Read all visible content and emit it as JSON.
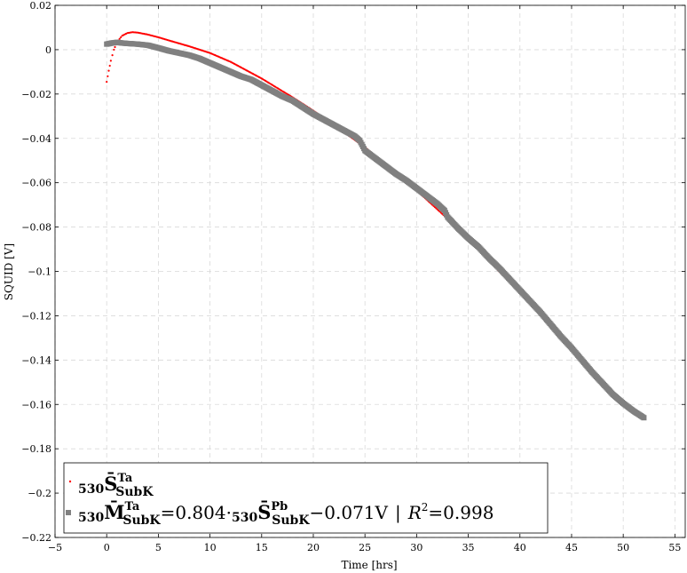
{
  "chart_data": {
    "type": "scatter",
    "title": "",
    "xlabel": "Time [hrs]",
    "ylabel": "SQUID [V]",
    "xlim": [
      -5,
      56
    ],
    "ylim": [
      -0.22,
      0.02
    ],
    "xticks": [
      "−5",
      "0",
      "5",
      "10",
      "15",
      "20",
      "25",
      "30",
      "35",
      "40",
      "45",
      "50",
      "55"
    ],
    "xtick_values": [
      -5,
      0,
      5,
      10,
      15,
      20,
      25,
      30,
      35,
      40,
      45,
      50,
      55
    ],
    "yticks": [
      "0.02",
      "0",
      "−0.02",
      "−0.04",
      "−0.06",
      "−0.08",
      "−0.1",
      "−0.12",
      "−0.14",
      "−0.16",
      "−0.18",
      "−0.2",
      "−0.22"
    ],
    "ytick_values": [
      0.02,
      0,
      -0.02,
      -0.04,
      -0.06,
      -0.08,
      -0.1,
      -0.12,
      -0.14,
      -0.16,
      -0.18,
      -0.2,
      -0.22
    ],
    "grid": true,
    "legend_position": "bottom-left",
    "series": [
      {
        "name": "530 S̄ Ta SubK",
        "color": "#ff0000",
        "marker": "small-dot",
        "x": [
          0.0,
          0.2,
          0.4,
          0.7,
          1.0,
          1.5,
          2.0,
          2.5,
          3.0,
          4.0,
          5.0,
          6.0,
          8.0,
          10.0,
          12.0,
          15.0,
          18.0,
          20.0,
          22.0,
          25.0,
          28.0,
          30.0,
          32.0,
          35.0,
          38.0,
          40.0,
          41.0
        ],
        "y": [
          -0.0145,
          -0.0095,
          -0.005,
          0.0,
          0.0035,
          0.0063,
          0.0075,
          0.0079,
          0.0077,
          0.0068,
          0.0056,
          0.0042,
          0.0015,
          -0.0015,
          -0.0055,
          -0.013,
          -0.0215,
          -0.0275,
          -0.034,
          -0.044,
          -0.056,
          -0.0635,
          -0.072,
          -0.085,
          -0.1,
          -0.109,
          -0.1145
        ]
      },
      {
        "name": "530 M̄ Ta SubK = 0.804 · 530 S̄ Pb SubK − 0.071V | R² = 0.998",
        "color": "#808080",
        "marker": "square",
        "x": [
          0.0,
          0.5,
          1.0,
          1.5,
          2.0,
          3.0,
          4.0,
          5.0,
          6.0,
          7.0,
          8.0,
          9.0,
          10.0,
          11.0,
          12.0,
          13.0,
          14.0,
          15.0,
          16.0,
          17.0,
          18.0,
          19.0,
          20.0,
          21.0,
          22.0,
          23.0,
          24.0,
          24.5,
          25.0,
          26.0,
          27.0,
          28.0,
          29.0,
          30.0,
          31.0,
          32.0,
          32.7,
          33.0,
          34.0,
          35.0,
          36.0,
          37.0,
          38.0,
          39.0,
          40.0,
          41.0,
          42.0,
          43.0,
          44.0,
          45.0,
          46.0,
          47.0,
          48.0,
          49.0,
          50.0,
          51.0,
          52.0
        ],
        "y": [
          0.0025,
          0.003,
          0.0033,
          0.003,
          0.0028,
          0.0025,
          0.002,
          0.0008,
          -0.0005,
          -0.0015,
          -0.0025,
          -0.004,
          -0.006,
          -0.008,
          -0.01,
          -0.012,
          -0.0135,
          -0.016,
          -0.0185,
          -0.021,
          -0.023,
          -0.026,
          -0.029,
          -0.0315,
          -0.034,
          -0.0365,
          -0.039,
          -0.041,
          -0.0455,
          -0.049,
          -0.0525,
          -0.056,
          -0.059,
          -0.0625,
          -0.066,
          -0.0695,
          -0.0725,
          -0.0755,
          -0.0805,
          -0.085,
          -0.089,
          -0.094,
          -0.0985,
          -0.1035,
          -0.1085,
          -0.1135,
          -0.1185,
          -0.124,
          -0.1295,
          -0.1345,
          -0.14,
          -0.1455,
          -0.1505,
          -0.1555,
          -0.1595,
          -0.163,
          -0.166
        ]
      }
    ],
    "legend": {
      "entry1": {
        "prefix": "530",
        "symbol": "S̄",
        "sup": "Ta",
        "sub": "SubK"
      },
      "entry2": {
        "prefix": "530",
        "symbol": "M̄",
        "sup": "Ta",
        "sub": "SubK",
        "eq": "=0.804·",
        "prefix2": "530",
        "symbol2": "S̄",
        "sup2": "Pb",
        "sub2": "SubK",
        "offset": "−0.071V",
        "sep": "|",
        "r2_label": "R",
        "r2_sup": "2",
        "r2_value": "=0.998"
      }
    }
  }
}
